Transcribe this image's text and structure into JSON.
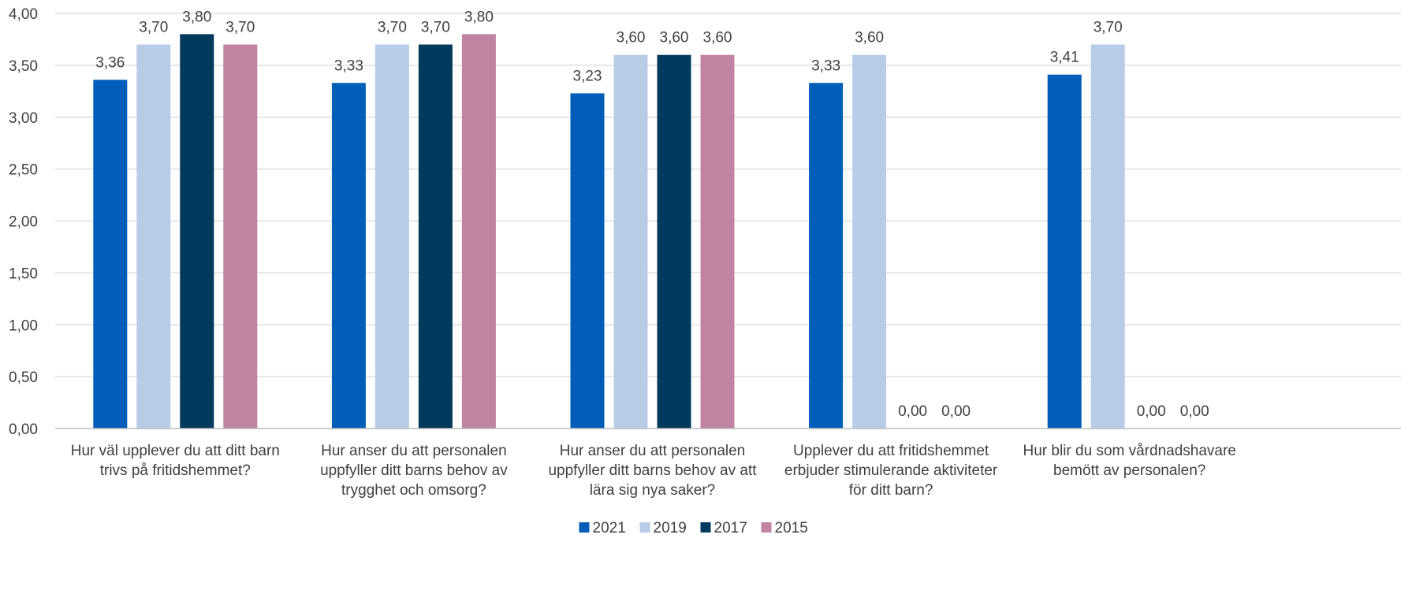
{
  "chart_data": {
    "type": "bar",
    "title": "",
    "xlabel": "",
    "ylabel": "",
    "ylim": [
      0,
      4
    ],
    "yticks": [
      "0,00",
      "0,50",
      "1,00",
      "1,50",
      "2,00",
      "2,50",
      "3,00",
      "3,50",
      "4,00"
    ],
    "grid": true,
    "legend_position": "bottom",
    "categories": [
      [
        "Hur väl upplever du att ditt barn",
        "trivs på fritidshemmet?"
      ],
      [
        "Hur anser du att personalen",
        "uppfyller ditt barns behov av",
        "trygghet och omsorg?"
      ],
      [
        "Hur anser du att personalen",
        "uppfyller ditt barns behov av att",
        "lära sig nya saker?"
      ],
      [
        "Upplever du att fritidshemmet",
        "erbjuder stimulerande aktiviteter",
        "för ditt barn?"
      ],
      [
        "Hur blir du som vårdnadshavare",
        "bemött av personalen?"
      ]
    ],
    "series": [
      {
        "name": "2021",
        "color": "#005EB8",
        "values": [
          3.36,
          3.33,
          3.23,
          3.33,
          3.41
        ],
        "labels": [
          "3,36",
          "3,33",
          "3,23",
          "3,33",
          "3,41"
        ]
      },
      {
        "name": "2019",
        "color": "#B8CCE8",
        "values": [
          3.7,
          3.7,
          3.6,
          3.6,
          3.7
        ],
        "labels": [
          "3,70",
          "3,70",
          "3,60",
          "3,60",
          "3,70"
        ]
      },
      {
        "name": "2017",
        "color": "#003A5D",
        "values": [
          3.8,
          3.7,
          3.6,
          0.0,
          0.0
        ],
        "labels": [
          "3,80",
          "3,70",
          "3,60",
          "0,00",
          "0,00"
        ]
      },
      {
        "name": "2015",
        "color": "#C083A2",
        "values": [
          3.7,
          3.8,
          3.6,
          0.0,
          0.0
        ],
        "labels": [
          "3,70",
          "3,80",
          "3,60",
          "0,00",
          "0,00"
        ]
      }
    ],
    "gridline_color": "#D9D9D9",
    "axis_color": "#BFBFBF"
  }
}
